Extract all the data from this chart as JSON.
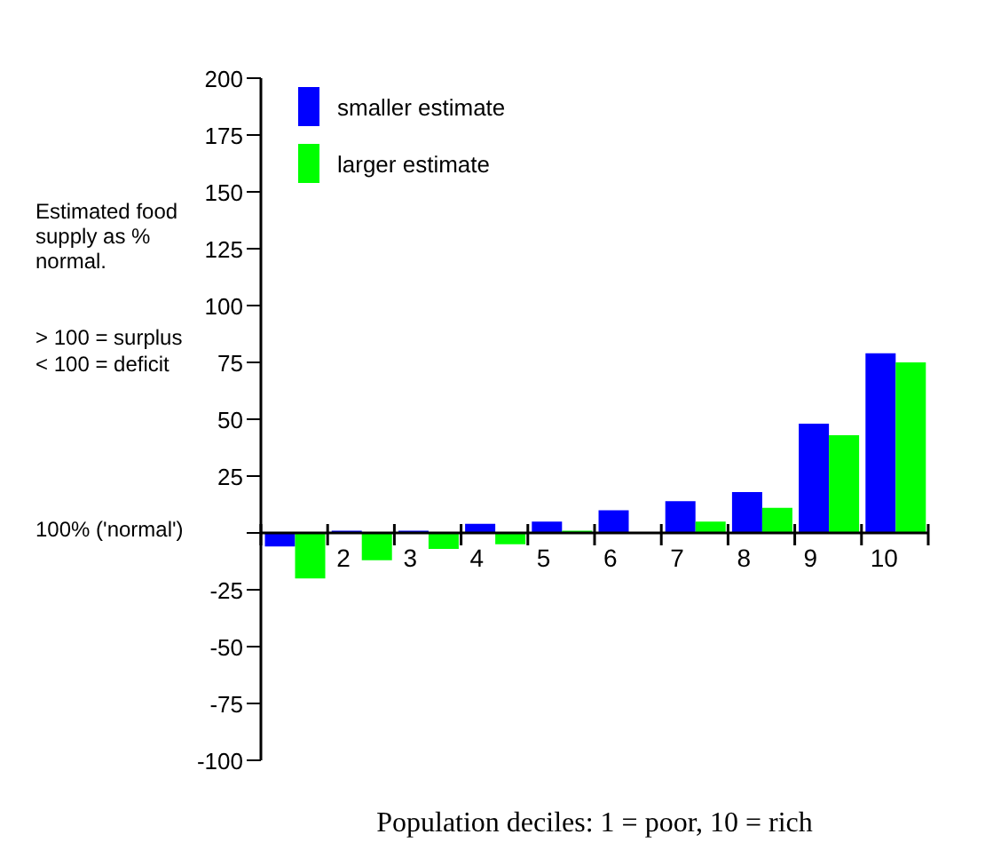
{
  "chart_data": {
    "type": "bar",
    "xlabel": "Population deciles: 1 = poor, 10 = rich",
    "annotations": [
      "Estimated food supply as % normal.",
      "> 100 = surplus",
      "< 100 = deficit",
      "100% ('normal')"
    ],
    "categories": [
      null,
      "2",
      "3",
      "4",
      "5",
      "6",
      "7",
      "8",
      "9",
      "10"
    ],
    "series": [
      {
        "name": "smaller estimate",
        "color": "#0000ff",
        "values": [
          -6,
          1,
          1,
          4,
          5,
          10,
          14,
          18,
          48,
          79
        ]
      },
      {
        "name": "larger estimate",
        "color": "#00ff00",
        "values": [
          -20,
          -12,
          -7,
          -5,
          1,
          0,
          5,
          11,
          43,
          75
        ]
      }
    ],
    "ylim": [
      -100,
      200
    ],
    "yticks": [
      -100,
      -75,
      -50,
      -25,
      {
        "value": 0,
        "label": null
      },
      25,
      50,
      75,
      100,
      125,
      150,
      175,
      200
    ],
    "grid": false,
    "legend": "top left"
  }
}
